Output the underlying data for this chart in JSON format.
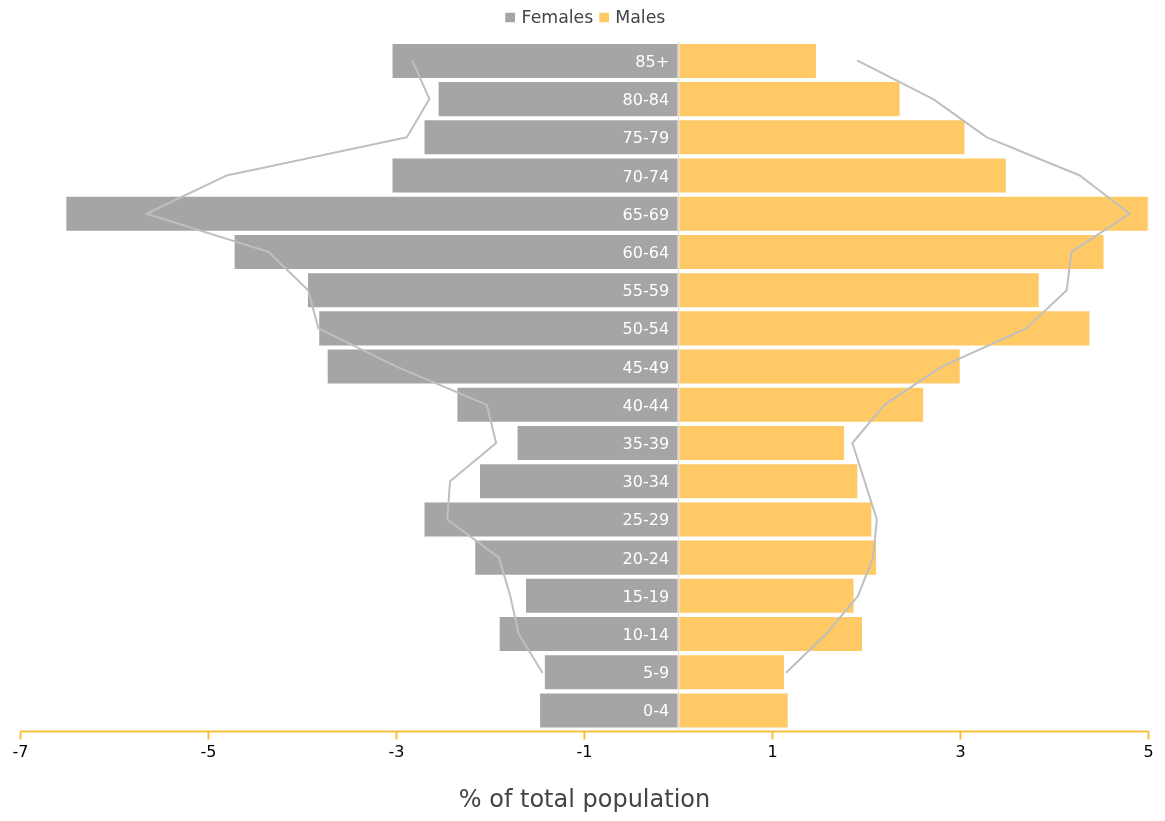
{
  "chart_data": {
    "type": "bar",
    "orientation": "horizontal",
    "stacked": true,
    "xlabel": "% of total population",
    "categories": [
      "85+",
      "80-84",
      "75-79",
      "70-74",
      "65-69",
      "60-64",
      "55-59",
      "50-54",
      "45-49",
      "40-44",
      "35-39",
      "30-34",
      "25-29",
      "20-24",
      "15-19",
      "10-14",
      "5-9",
      "0-4"
    ],
    "series": [
      {
        "name": "Females",
        "color": "#a5a5a5",
        "values": [
          -3.05,
          -2.56,
          -2.71,
          -3.05,
          -6.52,
          -4.73,
          -3.95,
          -3.83,
          -3.74,
          -2.36,
          -1.72,
          -2.12,
          -2.71,
          -2.17,
          -1.63,
          -1.91,
          -1.43,
          -1.48
        ]
      },
      {
        "name": "Males",
        "color": "#ffc966",
        "values": [
          1.47,
          2.36,
          3.05,
          3.49,
          5.0,
          4.53,
          3.84,
          4.38,
          3.0,
          2.61,
          1.77,
          1.91,
          2.06,
          2.11,
          1.87,
          1.96,
          1.13,
          1.17
        ]
      },
      {
        "type": "line",
        "color": "#bfbfbf",
        "values": [
          -2.83,
          -2.65,
          -2.89,
          -4.81,
          -5.66,
          -4.36,
          -3.94,
          -3.83,
          -3.0,
          -2.04,
          -1.94,
          -2.43,
          -2.46,
          -1.91,
          -1.79,
          -1.7,
          -1.45,
          null
        ]
      },
      {
        "type": "line",
        "color": "#bfbfbf",
        "values": [
          1.91,
          2.71,
          3.28,
          4.27,
          4.8,
          4.18,
          4.13,
          3.7,
          2.8,
          2.19,
          1.85,
          1.98,
          2.11,
          2.07,
          1.91,
          1.57,
          1.15,
          null
        ]
      }
    ],
    "xlim": [
      -7,
      5
    ],
    "xticks": [
      -7,
      -5,
      -3,
      -1,
      1,
      3,
      5
    ],
    "grid": false,
    "legend": "top"
  }
}
